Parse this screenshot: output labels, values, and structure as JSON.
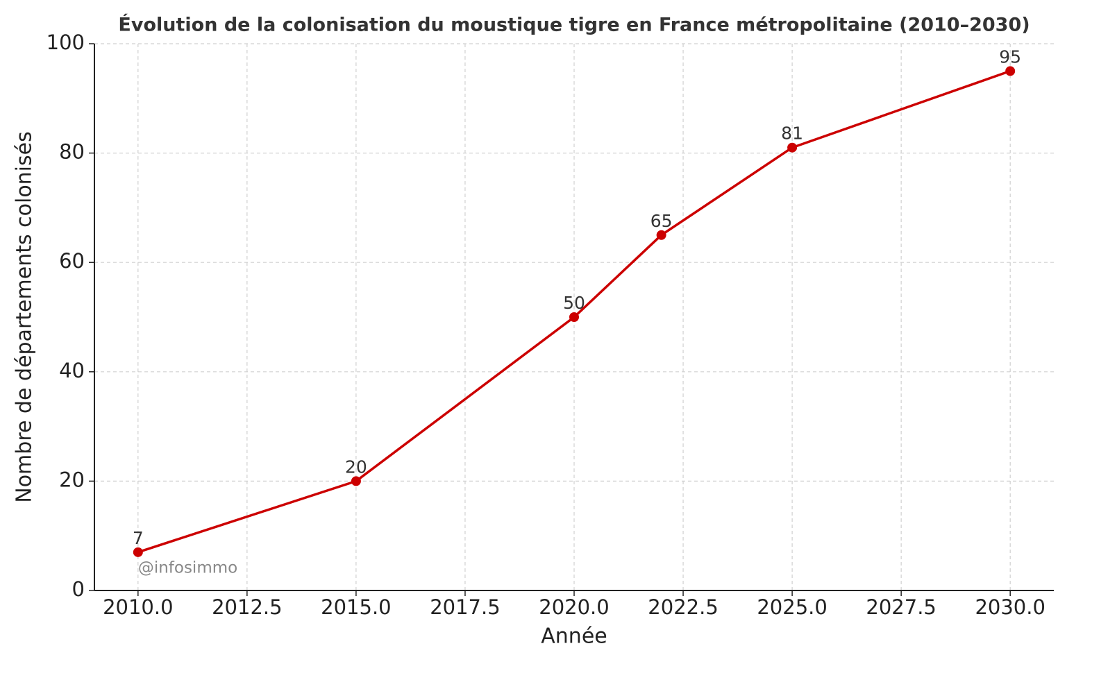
{
  "chart_data": {
    "type": "line",
    "title": "Évolution de la colonisation du moustique tigre en France métropolitaine (2010–2030)",
    "x_label": "Année",
    "y_label": "Nombre de départements colonisés",
    "annotation": "@infosimmo",
    "x": [
      2010,
      2015,
      2020,
      2022,
      2025,
      2030
    ],
    "series": [
      {
        "name": "Départements colonisés",
        "color": "#cc0000",
        "values": [
          7,
          20,
          50,
          65,
          81,
          95
        ]
      }
    ],
    "xlim": [
      2009,
      2031
    ],
    "xticks": [
      {
        "value": 2010,
        "label": "2010.0"
      },
      {
        "value": 2012.5,
        "label": "2012.5"
      },
      {
        "value": 2015,
        "label": "2015.0"
      },
      {
        "value": 2017.5,
        "label": "2017.5"
      },
      {
        "value": 2020,
        "label": "2020.0"
      },
      {
        "value": 2022.5,
        "label": "2022.5"
      },
      {
        "value": 2025,
        "label": "2025.0"
      },
      {
        "value": 2027.5,
        "label": "2027.5"
      },
      {
        "value": 2030,
        "label": "2030.0"
      }
    ],
    "ylim": [
      0,
      100
    ],
    "yticks": [
      0,
      20,
      40,
      60,
      80,
      100
    ],
    "grid": true
  }
}
